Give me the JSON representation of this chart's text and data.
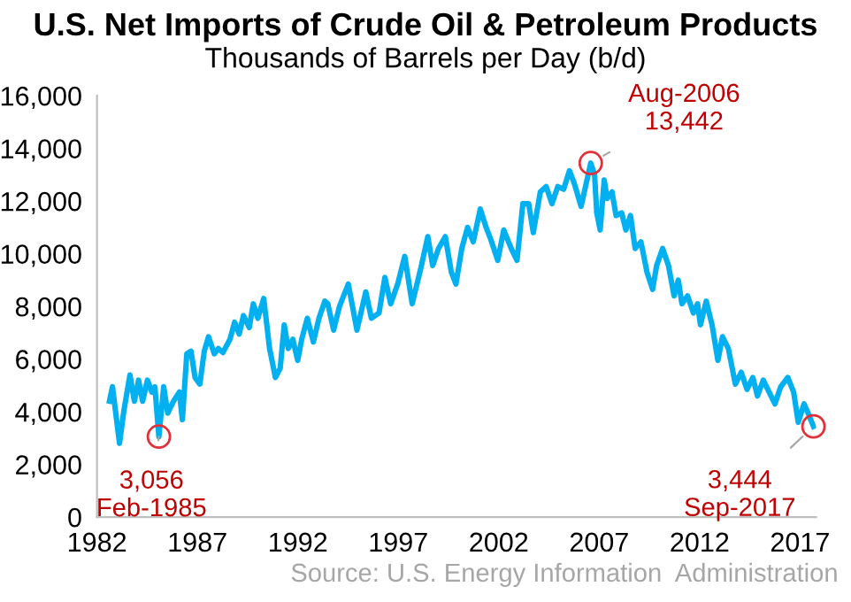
{
  "chart_data": {
    "type": "line",
    "title": "U.S. Net Imports of Crude Oil & Petroleum Products",
    "subtitle": "Thousands of Barrels per Day (b/d)",
    "x": [
      1982.62,
      1982.77,
      1983.12,
      1983.34,
      1983.64,
      1983.86,
      1984.07,
      1984.27,
      1984.51,
      1984.73,
      1984.88,
      1985.08,
      1985.32,
      1985.52,
      1985.81,
      1986.1,
      1986.25,
      1986.47,
      1986.68,
      1986.88,
      1987.12,
      1987.34,
      1987.55,
      1987.84,
      1988.04,
      1988.27,
      1988.62,
      1988.85,
      1989.08,
      1989.29,
      1989.58,
      1989.78,
      1990.01,
      1990.3,
      1990.59,
      1990.88,
      1991.12,
      1991.32,
      1991.52,
      1991.75,
      1991.99,
      1992.19,
      1992.47,
      1992.77,
      1993.05,
      1993.34,
      1993.49,
      1993.78,
      1994.07,
      1994.51,
      1994.94,
      1995.38,
      1995.66,
      1996.04,
      1996.33,
      1996.62,
      1996.97,
      1997.32,
      1997.69,
      1998.12,
      1998.47,
      1998.71,
      1999.0,
      1999.34,
      1999.64,
      1999.87,
      2000.16,
      2000.45,
      2000.73,
      2001.08,
      2001.37,
      2001.6,
      2001.95,
      2002.25,
      2002.62,
      2002.91,
      2003.2,
      2003.49,
      2003.72,
      2004.07,
      2004.36,
      2004.65,
      2004.94,
      2005.23,
      2005.52,
      2005.75,
      2006.1,
      2006.58,
      2006.77,
      2006.88,
      2007.05,
      2007.25,
      2007.4,
      2007.64,
      2007.84,
      2008.12,
      2008.33,
      2008.56,
      2008.79,
      2009.08,
      2009.38,
      2009.66,
      2009.86,
      2010.16,
      2010.45,
      2010.73,
      2010.94,
      2011.12,
      2011.4,
      2011.69,
      2011.9,
      2012.04,
      2012.33,
      2012.62,
      2012.91,
      2013.14,
      2013.43,
      2013.78,
      2014.07,
      2014.36,
      2014.65,
      2014.88,
      2015.17,
      2015.46,
      2015.75,
      2016.04,
      2016.39,
      2016.68,
      2016.91,
      2017.2,
      2017.4,
      2017.67
    ],
    "series": [
      {
        "color": "#00b0f0",
        "values": [
          4400,
          4950,
          2800,
          4050,
          5400,
          4400,
          5200,
          4400,
          5200,
          4750,
          4950,
          3056,
          4950,
          3950,
          4400,
          4750,
          3700,
          6200,
          6300,
          5300,
          5050,
          6300,
          6850,
          6200,
          6400,
          6250,
          6750,
          7400,
          6950,
          7650,
          7200,
          8100,
          7550,
          8300,
          6400,
          5300,
          5650,
          7300,
          6400,
          6750,
          5950,
          6750,
          7550,
          6650,
          7550,
          8200,
          8100,
          7100,
          8000,
          8850,
          7100,
          8550,
          7550,
          7750,
          9100,
          8100,
          8850,
          9900,
          8100,
          9450,
          10650,
          9550,
          10200,
          10650,
          9300,
          8850,
          10200,
          11000,
          10450,
          11700,
          11000,
          10550,
          9750,
          10900,
          10200,
          9750,
          11900,
          11900,
          10800,
          12350,
          12550,
          11900,
          12550,
          12450,
          13150,
          12700,
          11800,
          13442,
          13000,
          11550,
          10900,
          12800,
          12100,
          12350,
          11450,
          11550,
          10900,
          11450,
          10200,
          10450,
          9300,
          8650,
          9550,
          10200,
          9550,
          8400,
          9000,
          8100,
          8400,
          7750,
          8100,
          7300,
          8200,
          7300,
          5950,
          6850,
          6400,
          5050,
          5500,
          4850,
          5300,
          4600,
          5200,
          4750,
          4300,
          4950,
          5300,
          4750,
          3600,
          4300,
          3950,
          3444
        ]
      }
    ],
    "xlim": [
      1982,
      2017.8
    ],
    "xticks": [
      1982,
      1987,
      1992,
      1997,
      2002,
      2007,
      2012,
      2017
    ],
    "ylim": [
      0,
      16000
    ],
    "yticks": [
      0,
      {
        "value": 2000,
        "label": "2,000"
      },
      {
        "value": 4000,
        "label": "4,000"
      },
      {
        "value": 6000,
        "label": "6,000"
      },
      {
        "value": 8000,
        "label": "8,000"
      },
      {
        "value": 10000,
        "label": "10,000"
      },
      {
        "value": 12000,
        "label": "12,000"
      },
      {
        "value": 14000,
        "label": "14,000"
      },
      {
        "value": 16000,
        "label": "16,000"
      }
    ],
    "grid": false,
    "marker": "none",
    "line_style": "solid",
    "annotations": [
      {
        "text": "3,056\nFeb-1985",
        "x": 1985.08,
        "y": 3056
      },
      {
        "text": "Aug-2006\n13,442",
        "x": 2006.58,
        "y": 13442
      },
      {
        "text": "3,444\nSep-2017",
        "x": 2017.67,
        "y": 3444
      },
      "Source: U.S. Energy Information  Administration"
    ]
  }
}
